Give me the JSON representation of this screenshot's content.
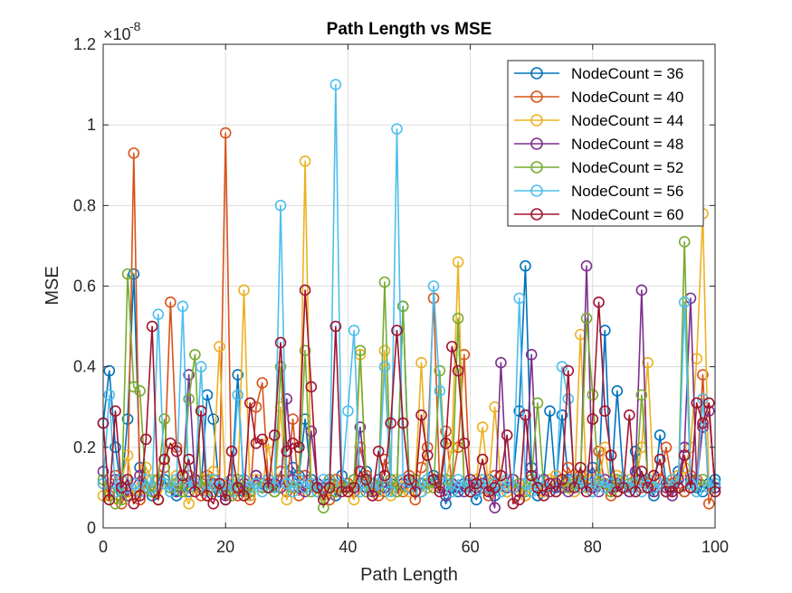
{
  "chart_data": {
    "type": "line",
    "title": "Path Length vs MSE",
    "xlabel": "Path Length",
    "ylabel": "MSE",
    "xlim": [
      0,
      100
    ],
    "ylim": [
      0,
      1.2
    ],
    "y_exponent_label": "×10",
    "y_exponent": "-8",
    "x_ticks": [
      0,
      20,
      40,
      60,
      80,
      100
    ],
    "y_ticks": [
      0,
      0.2,
      0.4,
      0.6,
      0.8,
      1,
      1.2
    ],
    "x_tick_labels": [
      "0",
      "20",
      "40",
      "60",
      "80",
      "100"
    ],
    "y_tick_labels": [
      "0",
      "0.2",
      "0.4",
      "0.6",
      "0.8",
      "1",
      "1.2"
    ],
    "grid": true,
    "marker": "circle",
    "legend_position": "top-right",
    "x": [
      0,
      1,
      2,
      3,
      4,
      5,
      6,
      7,
      8,
      9,
      10,
      11,
      12,
      13,
      14,
      15,
      16,
      17,
      18,
      19,
      20,
      21,
      22,
      23,
      24,
      25,
      26,
      27,
      28,
      29,
      30,
      31,
      32,
      33,
      34,
      35,
      36,
      37,
      38,
      39,
      40,
      41,
      42,
      43,
      44,
      45,
      46,
      47,
      48,
      49,
      50,
      51,
      52,
      53,
      54,
      55,
      56,
      57,
      58,
      59,
      60,
      61,
      62,
      63,
      64,
      65,
      66,
      67,
      68,
      69,
      70,
      71,
      72,
      73,
      74,
      75,
      76,
      77,
      78,
      79,
      80,
      81,
      82,
      83,
      84,
      85,
      86,
      87,
      88,
      89,
      90,
      91,
      92,
      93,
      94,
      95,
      96,
      97,
      98,
      99,
      100
    ],
    "series": [
      {
        "name": "NodeCount = 36",
        "color": "#0072BD",
        "values": [
          0.26,
          0.39,
          0.2,
          0.09,
          0.27,
          0.63,
          0.15,
          0.1,
          0.08,
          0.07,
          0.12,
          0.09,
          0.08,
          0.1,
          0.09,
          0.12,
          0.1,
          0.33,
          0.27,
          0.09,
          0.07,
          0.12,
          0.38,
          0.09,
          0.08,
          0.13,
          0.11,
          0.1,
          0.09,
          0.12,
          0.11,
          0.15,
          0.13,
          0.27,
          0.12,
          0.09,
          0.1,
          0.11,
          0.08,
          0.13,
          0.1,
          0.09,
          0.11,
          0.14,
          0.1,
          0.12,
          0.09,
          0.11,
          0.1,
          0.55,
          0.12,
          0.09,
          0.11,
          0.1,
          0.13,
          0.12,
          0.06,
          0.1,
          0.09,
          0.11,
          0.09,
          0.07,
          0.1,
          0.12,
          0.08,
          0.11,
          0.1,
          0.12,
          0.29,
          0.65,
          0.15,
          0.08,
          0.12,
          0.29,
          0.1,
          0.28,
          0.12,
          0.09,
          0.11,
          0.13,
          0.15,
          0.12,
          0.49,
          0.1,
          0.34,
          0.12,
          0.09,
          0.19,
          0.12,
          0.1,
          0.08,
          0.23,
          0.11,
          0.1,
          0.14,
          0.09,
          0.12,
          0.1,
          0.09,
          0.11,
          0.12
        ]
      },
      {
        "name": "NodeCount = 40",
        "color": "#D95319",
        "values": [
          0.11,
          0.08,
          0.13,
          0.06,
          0.09,
          0.93,
          0.07,
          0.12,
          0.09,
          0.07,
          0.15,
          0.56,
          0.2,
          0.1,
          0.13,
          0.11,
          0.08,
          0.13,
          0.12,
          0.1,
          0.98,
          0.09,
          0.08,
          0.12,
          0.07,
          0.3,
          0.36,
          0.11,
          0.1,
          0.14,
          0.09,
          0.27,
          0.08,
          0.13,
          0.11,
          0.1,
          0.09,
          0.07,
          0.12,
          0.1,
          0.11,
          0.09,
          0.2,
          0.13,
          0.1,
          0.08,
          0.17,
          0.12,
          0.1,
          0.09,
          0.13,
          0.07,
          0.15,
          0.2,
          0.57,
          0.1,
          0.24,
          0.11,
          0.2,
          0.43,
          0.09,
          0.12,
          0.1,
          0.08,
          0.13,
          0.11,
          0.09,
          0.12,
          0.1,
          0.08,
          0.12,
          0.1,
          0.09,
          0.11,
          0.13,
          0.1,
          0.15,
          0.12,
          0.13,
          0.1,
          0.09,
          0.19,
          0.11,
          0.08,
          0.12,
          0.1,
          0.09,
          0.12,
          0.1,
          0.11,
          0.09,
          0.12,
          0.2,
          0.11,
          0.1,
          0.09,
          0.13,
          0.12,
          0.38,
          0.06,
          0.1
        ]
      },
      {
        "name": "NodeCount = 44",
        "color": "#EDB120",
        "values": [
          0.08,
          0.07,
          0.09,
          0.12,
          0.18,
          0.08,
          0.1,
          0.15,
          0.12,
          0.07,
          0.11,
          0.1,
          0.13,
          0.09,
          0.06,
          0.1,
          0.12,
          0.08,
          0.14,
          0.45,
          0.09,
          0.11,
          0.1,
          0.59,
          0.08,
          0.12,
          0.1,
          0.21,
          0.09,
          0.3,
          0.07,
          0.12,
          0.1,
          0.91,
          0.09,
          0.1,
          0.08,
          0.12,
          0.1,
          0.11,
          0.09,
          0.07,
          0.43,
          0.12,
          0.1,
          0.09,
          0.44,
          0.08,
          0.12,
          0.1,
          0.09,
          0.11,
          0.41,
          0.1,
          0.12,
          0.09,
          0.11,
          0.2,
          0.66,
          0.1,
          0.09,
          0.12,
          0.25,
          0.1,
          0.3,
          0.11,
          0.09,
          0.12,
          0.1,
          0.08,
          0.11,
          0.1,
          0.09,
          0.12,
          0.13,
          0.1,
          0.11,
          0.09,
          0.48,
          0.1,
          0.12,
          0.11,
          0.2,
          0.09,
          0.13,
          0.1,
          0.12,
          0.11,
          0.2,
          0.41,
          0.09,
          0.11,
          0.1,
          0.12,
          0.13,
          0.15,
          0.2,
          0.42,
          0.78,
          0.1,
          0.09
        ]
      },
      {
        "name": "NodeCount = 48",
        "color": "#7E2F8E",
        "values": [
          0.14,
          0.09,
          0.12,
          0.1,
          0.08,
          0.11,
          0.13,
          0.1,
          0.09,
          0.12,
          0.11,
          0.1,
          0.09,
          0.11,
          0.38,
          0.12,
          0.1,
          0.09,
          0.11,
          0.1,
          0.08,
          0.12,
          0.1,
          0.11,
          0.09,
          0.13,
          0.1,
          0.12,
          0.11,
          0.1,
          0.32,
          0.12,
          0.1,
          0.09,
          0.24,
          0.11,
          0.1,
          0.12,
          0.09,
          0.11,
          0.1,
          0.12,
          0.25,
          0.1,
          0.09,
          0.11,
          0.1,
          0.12,
          0.09,
          0.11,
          0.1,
          0.12,
          0.09,
          0.11,
          0.12,
          0.1,
          0.08,
          0.11,
          0.1,
          0.09,
          0.12,
          0.1,
          0.11,
          0.09,
          0.05,
          0.41,
          0.1,
          0.12,
          0.09,
          0.11,
          0.43,
          0.1,
          0.12,
          0.09,
          0.11,
          0.1,
          0.09,
          0.12,
          0.11,
          0.65,
          0.1,
          0.09,
          0.12,
          0.1,
          0.11,
          0.12,
          0.09,
          0.14,
          0.59,
          0.1,
          0.09,
          0.11,
          0.1,
          0.08,
          0.12,
          0.2,
          0.57,
          0.11,
          0.25,
          0.29,
          0.1
        ]
      },
      {
        "name": "NodeCount = 52",
        "color": "#77AC30",
        "values": [
          0.12,
          0.09,
          0.06,
          0.07,
          0.63,
          0.35,
          0.34,
          0.1,
          0.09,
          0.12,
          0.27,
          0.1,
          0.11,
          0.09,
          0.32,
          0.43,
          0.1,
          0.12,
          0.09,
          0.11,
          0.1,
          0.08,
          0.12,
          0.1,
          0.09,
          0.11,
          0.1,
          0.12,
          0.09,
          0.4,
          0.11,
          0.1,
          0.12,
          0.44,
          0.09,
          0.1,
          0.05,
          0.12,
          0.09,
          0.11,
          0.1,
          0.12,
          0.44,
          0.09,
          0.11,
          0.1,
          0.61,
          0.12,
          0.09,
          0.55,
          0.1,
          0.12,
          0.09,
          0.11,
          0.1,
          0.39,
          0.12,
          0.09,
          0.52,
          0.1,
          0.11,
          0.09,
          0.12,
          0.1,
          0.11,
          0.09,
          0.12,
          0.1,
          0.11,
          0.09,
          0.12,
          0.31,
          0.1,
          0.11,
          0.09,
          0.12,
          0.1,
          0.11,
          0.12,
          0.52,
          0.33,
          0.11,
          0.1,
          0.09,
          0.12,
          0.1,
          0.11,
          0.09,
          0.33,
          0.12,
          0.1,
          0.11,
          0.09,
          0.12,
          0.1,
          0.71,
          0.11,
          0.09,
          0.12,
          0.1,
          0.11
        ]
      },
      {
        "name": "NodeCount = 56",
        "color": "#4DBEEE",
        "values": [
          0.11,
          0.33,
          0.09,
          0.12,
          0.1,
          0.11,
          0.09,
          0.12,
          0.1,
          0.53,
          0.11,
          0.09,
          0.12,
          0.55,
          0.1,
          0.11,
          0.4,
          0.09,
          0.12,
          0.1,
          0.11,
          0.09,
          0.33,
          0.12,
          0.1,
          0.11,
          0.09,
          0.12,
          0.1,
          0.8,
          0.11,
          0.09,
          0.12,
          0.1,
          0.11,
          0.09,
          0.12,
          0.1,
          1.1,
          0.11,
          0.29,
          0.49,
          0.09,
          0.12,
          0.1,
          0.11,
          0.4,
          0.09,
          0.99,
          0.12,
          0.1,
          0.11,
          0.09,
          0.12,
          0.6,
          0.34,
          0.11,
          0.09,
          0.12,
          0.1,
          0.11,
          0.09,
          0.12,
          0.1,
          0.11,
          0.09,
          0.12,
          0.1,
          0.57,
          0.11,
          0.09,
          0.12,
          0.1,
          0.11,
          0.09,
          0.4,
          0.32,
          0.12,
          0.1,
          0.11,
          0.09,
          0.12,
          0.1,
          0.11,
          0.09,
          0.12,
          0.1,
          0.11,
          0.09,
          0.12,
          0.1,
          0.11,
          0.09,
          0.12,
          0.1,
          0.56,
          0.11,
          0.09,
          0.32,
          0.1,
          0.11
        ]
      },
      {
        "name": "NodeCount = 60",
        "color": "#A2142F",
        "values": [
          0.26,
          0.07,
          0.29,
          0.1,
          0.12,
          0.06,
          0.08,
          0.22,
          0.5,
          0.07,
          0.17,
          0.21,
          0.19,
          0.13,
          0.17,
          0.09,
          0.29,
          0.08,
          0.06,
          0.11,
          0.07,
          0.19,
          0.1,
          0.08,
          0.31,
          0.21,
          0.22,
          0.1,
          0.23,
          0.46,
          0.19,
          0.21,
          0.2,
          0.59,
          0.35,
          0.1,
          0.07,
          0.1,
          0.5,
          0.09,
          0.09,
          0.1,
          0.14,
          0.12,
          0.08,
          0.19,
          0.13,
          0.26,
          0.49,
          0.26,
          0.12,
          0.09,
          0.28,
          0.18,
          0.12,
          0.09,
          0.21,
          0.45,
          0.39,
          0.21,
          0.09,
          0.11,
          0.17,
          0.09,
          0.1,
          0.13,
          0.23,
          0.06,
          0.07,
          0.28,
          0.13,
          0.1,
          0.08,
          0.11,
          0.09,
          0.12,
          0.39,
          0.1,
          0.15,
          0.09,
          0.27,
          0.56,
          0.29,
          0.18,
          0.09,
          0.1,
          0.28,
          0.09,
          0.14,
          0.1,
          0.13,
          0.17,
          0.09,
          0.09,
          0.1,
          0.18,
          0.1,
          0.31,
          0.26,
          0.31,
          0.09
        ]
      }
    ]
  }
}
